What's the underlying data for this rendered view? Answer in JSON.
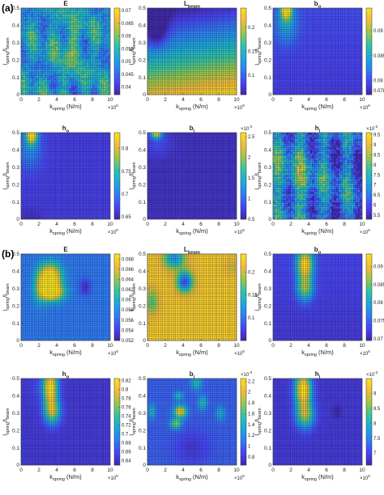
{
  "labels": {
    "part_a": "(a)",
    "part_b": "(b)"
  },
  "axis_text": {
    "xlabel": "k",
    "xlabel_sub": "spring",
    "xlabel_unit": " (N/m)",
    "ylabel_l1": "l",
    "ylabel_sub1": "spring",
    "ylabel_mid": "/l",
    "ylabel_sub2": "beam",
    "x_multiplier_base": "×10",
    "x_multiplier_exp": "8"
  },
  "colormap": [
    "#3e26a8",
    "#4743f8",
    "#2c7df7",
    "#1ba9de",
    "#2ec4a8",
    "#98c74b",
    "#f3bb3b",
    "#f9e21c"
  ],
  "chart_data": [
    {
      "type": "heatmap",
      "id": "a_E",
      "title": "E",
      "title_sub": "",
      "xlim": [
        0,
        10
      ],
      "ylim": [
        0,
        0.5
      ],
      "xticks": [
        "0",
        "2",
        "4",
        "6",
        "8",
        "10"
      ],
      "yticks": [
        "0",
        "0.1",
        "0.2",
        "0.3",
        "0.4",
        "0.5"
      ],
      "colorbar": {
        "min": 0.037,
        "max": 0.071,
        "ticks": [
          "0.04",
          "0.045",
          "0.05",
          "0.055",
          "0.06",
          "0.065",
          "0.07"
        ],
        "exponent": ""
      },
      "pattern": "aE"
    },
    {
      "type": "heatmap",
      "id": "a_L",
      "title": "L",
      "title_sub": "beam",
      "xlim": [
        0,
        10
      ],
      "ylim": [
        0,
        0.5
      ],
      "xticks": [
        "0",
        "2",
        "4",
        "6",
        "8",
        "10"
      ],
      "yticks": [
        "0",
        "0.1",
        "0.2",
        "0.3",
        "0.4",
        "0.5"
      ],
      "colorbar": {
        "min": 0.06,
        "max": 0.24,
        "ticks": [
          "0.1",
          "0.15",
          "0.2"
        ],
        "exponent": ""
      },
      "pattern": "aL"
    },
    {
      "type": "heatmap",
      "id": "a_bo",
      "title": "b",
      "title_sub": "o",
      "xlim": [
        0,
        10
      ],
      "ylim": [
        0,
        0.5
      ],
      "xticks": [
        "0",
        "2",
        "4",
        "6",
        "8",
        "10"
      ],
      "yticks": [
        "0",
        "0.1",
        "0.2",
        "0.3",
        "0.4",
        "0.5"
      ],
      "colorbar": {
        "min": 0.0772,
        "max": 0.0945,
        "ticks": [
          "0.078",
          "0.08",
          "0.085",
          "0.09"
        ],
        "exponent": ""
      },
      "pattern": "aBo"
    },
    {
      "type": "heatmap",
      "id": "a_ho",
      "title": "h",
      "title_sub": "o",
      "xlim": [
        0,
        10
      ],
      "ylim": [
        0,
        0.5
      ],
      "xticks": [
        "0",
        "2",
        "4",
        "6",
        "8",
        "10"
      ],
      "yticks": [
        "0",
        "0.1",
        "0.2",
        "0.3",
        "0.4",
        "0.5"
      ],
      "colorbar": {
        "min": 0.645,
        "max": 0.835,
        "ticks": [
          "0.65",
          "0.7",
          "0.75",
          "0.8"
        ],
        "exponent": ""
      },
      "pattern": "aHo"
    },
    {
      "type": "heatmap",
      "id": "a_bi",
      "title": "b",
      "title_sub": "i",
      "xlim": [
        0,
        10
      ],
      "ylim": [
        0,
        0.5
      ],
      "xticks": [
        "0",
        "2",
        "4",
        "6",
        "8",
        "10"
      ],
      "yticks": [
        "0",
        "0.1",
        "0.2",
        "0.3",
        "0.4",
        "0.5"
      ],
      "colorbar": {
        "min": 0.5,
        "max": 2.6,
        "ticks": [
          "0.5",
          "1",
          "1.5",
          "2",
          "2.5"
        ],
        "exponent": "-3"
      },
      "pattern": "aBi"
    },
    {
      "type": "heatmap",
      "id": "a_hi",
      "title": "h",
      "title_sub": "i",
      "xlim": [
        0,
        10
      ],
      "ylim": [
        0,
        0.5
      ],
      "xticks": [
        "0",
        "2",
        "4",
        "6",
        "8",
        "10"
      ],
      "yticks": [
        "0",
        "0.1",
        "0.2",
        "0.3",
        "0.4",
        "0.5"
      ],
      "colorbar": {
        "min": 5.3,
        "max": 9.6,
        "ticks": [
          "5.5",
          "6",
          "6.5",
          "7",
          "7.5",
          "8",
          "8.5",
          "9",
          "9.5"
        ],
        "exponent": "-3"
      },
      "pattern": "aHi"
    },
    {
      "type": "heatmap",
      "id": "b_E",
      "title": "E",
      "title_sub": "",
      "xlim": [
        0,
        10
      ],
      "ylim": [
        0,
        0.5
      ],
      "xticks": [
        "0",
        "2",
        "4",
        "6",
        "8",
        "10"
      ],
      "yticks": [
        "0",
        "0.1",
        "0.2",
        "0.3",
        "0.4",
        "0.5"
      ],
      "colorbar": {
        "min": 0.052,
        "max": 0.069,
        "ticks": [
          "0.052",
          "0.054",
          "0.056",
          "0.058",
          "0.06",
          "0.062",
          "0.064",
          "0.066",
          "0.068"
        ],
        "exponent": ""
      },
      "pattern": "bE"
    },
    {
      "type": "heatmap",
      "id": "b_L",
      "title": "L",
      "title_sub": "beam",
      "xlim": [
        0,
        10
      ],
      "ylim": [
        0,
        0.5
      ],
      "xticks": [
        "0",
        "2",
        "4",
        "6",
        "8",
        "10"
      ],
      "yticks": [
        "0",
        "0.1",
        "0.2",
        "0.3",
        "0.4",
        "0.5"
      ],
      "colorbar": {
        "min": 0.05,
        "max": 0.24,
        "ticks": [
          "0.1",
          "0.15",
          "0.2"
        ],
        "exponent": ""
      },
      "pattern": "bL"
    },
    {
      "type": "heatmap",
      "id": "b_bo",
      "title": "b",
      "title_sub": "o",
      "xlim": [
        0,
        10
      ],
      "ylim": [
        0,
        0.5
      ],
      "xticks": [
        "0",
        "2",
        "4",
        "6",
        "8",
        "10"
      ],
      "yticks": [
        "0",
        "0.1",
        "0.2",
        "0.3",
        "0.4",
        "0.5"
      ],
      "colorbar": {
        "min": 0.0695,
        "max": 0.0935,
        "ticks": [
          "0.07",
          "0.075",
          "0.08",
          "0.085",
          "0.09"
        ],
        "exponent": ""
      },
      "pattern": "bBo"
    },
    {
      "type": "heatmap",
      "id": "b_ho",
      "title": "h",
      "title_sub": "o",
      "xlim": [
        0,
        10
      ],
      "ylim": [
        0,
        0.5
      ],
      "xticks": [
        "0",
        "2",
        "4",
        "6",
        "8",
        "10"
      ],
      "yticks": [
        "0",
        "0.1",
        "0.2",
        "0.3",
        "0.4",
        "0.5"
      ],
      "colorbar": {
        "min": 0.63,
        "max": 0.825,
        "ticks": [
          "0.64",
          "0.66",
          "0.68",
          "0.7",
          "0.72",
          "0.74",
          "0.76",
          "0.78",
          "0.8",
          "0.82"
        ],
        "exponent": ""
      },
      "pattern": "bHo"
    },
    {
      "type": "heatmap",
      "id": "b_bi",
      "title": "b",
      "title_sub": "i",
      "xlim": [
        0,
        10
      ],
      "ylim": [
        0,
        0.5
      ],
      "xticks": [
        "0",
        "2",
        "4",
        "6",
        "8",
        "10"
      ],
      "yticks": [
        "0",
        "0.1",
        "0.2",
        "0.3",
        "0.4",
        "0.5"
      ],
      "colorbar": {
        "min": 0.65,
        "max": 2.25,
        "ticks": [
          "0.8",
          "1",
          "1.2",
          "1.4",
          "1.6",
          "1.8",
          "2",
          "2.2"
        ],
        "exponent": "-3"
      },
      "pattern": "bBi"
    },
    {
      "type": "heatmap",
      "id": "b_hi",
      "title": "h",
      "title_sub": "i",
      "xlim": [
        0,
        10
      ],
      "ylim": [
        0,
        0.5
      ],
      "xticks": [
        "0",
        "2",
        "4",
        "6",
        "8",
        "10"
      ],
      "yticks": [
        "0",
        "0.1",
        "0.2",
        "0.3",
        "0.4",
        "0.5"
      ],
      "colorbar": {
        "min": 6.6,
        "max": 9.5,
        "ticks": [
          "7",
          "7.5",
          "8",
          "8.5",
          "9"
        ],
        "exponent": "-3"
      },
      "pattern": "bHi"
    }
  ]
}
